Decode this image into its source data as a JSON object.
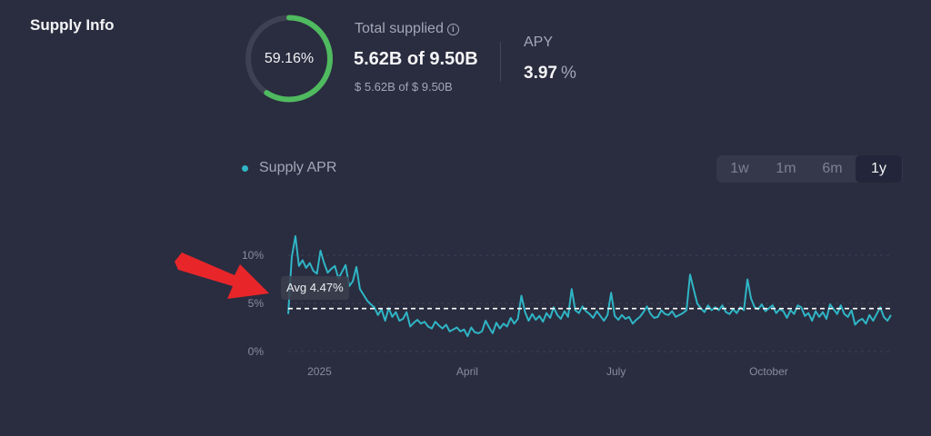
{
  "section": {
    "title": "Supply Info"
  },
  "utilization": {
    "percent_text": "59.16%",
    "fraction": 0.5916
  },
  "total_supplied": {
    "label": "Total supplied",
    "value": "5.62B of 9.50B",
    "usd": "$ 5.62B of $ 9.50B"
  },
  "apy": {
    "label": "APY",
    "value": "3.97",
    "unit": "%"
  },
  "legend": {
    "label": "Supply APR"
  },
  "ranges": [
    {
      "label": "1w",
      "active": false
    },
    {
      "label": "1m",
      "active": false
    },
    {
      "label": "6m",
      "active": false
    },
    {
      "label": "1y",
      "active": true
    }
  ],
  "colors": {
    "background": "#2a2d3f",
    "ring_fill": "#4fba5f",
    "ring_track": "#3e4152",
    "series": "#2fb5c6",
    "arrow": "#e8262a"
  },
  "chart_data": {
    "type": "line",
    "series_name": "Supply APR",
    "ylim": [
      0,
      12
    ],
    "yticks": [
      "10%",
      "5%",
      "0%"
    ],
    "ytick_values": [
      10,
      5,
      0
    ],
    "xticks": [
      "2025",
      "April",
      "July",
      "October"
    ],
    "xtick_positions": [
      0.052,
      0.297,
      0.544,
      0.797
    ],
    "avg_value": 4.47,
    "avg_label": "Avg 4.47%",
    "values": [
      3.9,
      9.8,
      12.0,
      8.9,
      9.5,
      8.7,
      9.2,
      8.4,
      8.1,
      10.5,
      9.2,
      8.2,
      8.6,
      8.9,
      7.6,
      8.3,
      9.0,
      6.8,
      7.3,
      8.8,
      6.5,
      5.9,
      5.3,
      4.9,
      4.6,
      3.8,
      4.4,
      3.2,
      4.5,
      3.6,
      4.1,
      3.2,
      3.4,
      4.1,
      2.6,
      3.0,
      3.3,
      2.9,
      3.1,
      2.6,
      2.4,
      3.1,
      2.7,
      2.4,
      2.8,
      2.1,
      2.3,
      2.5,
      2.1,
      2.3,
      1.6,
      2.5,
      2.0,
      1.9,
      2.1,
      3.2,
      2.5,
      1.9,
      3.0,
      2.4,
      2.9,
      2.6,
      3.5,
      2.9,
      3.4,
      5.8,
      4.1,
      3.2,
      3.9,
      3.3,
      3.7,
      3.1,
      4.0,
      3.5,
      4.6,
      3.8,
      3.4,
      4.2,
      3.6,
      6.5,
      4.3,
      4.0,
      4.7,
      4.2,
      3.9,
      3.5,
      4.2,
      3.7,
      3.2,
      3.8,
      6.1,
      3.7,
      3.3,
      3.8,
      3.4,
      3.6,
      2.9,
      3.3,
      3.6,
      4.1,
      4.7,
      3.9,
      3.5,
      3.6,
      4.3,
      3.9,
      3.8,
      4.2,
      3.6,
      3.8,
      4.0,
      4.3,
      8.0,
      6.5,
      5.0,
      4.5,
      4.1,
      4.8,
      4.3,
      4.6,
      4.3,
      4.8,
      4.1,
      3.9,
      4.4,
      4.0,
      4.6,
      4.3,
      7.5,
      5.5,
      4.6,
      4.4,
      4.9,
      4.2,
      4.5,
      4.8,
      4.0,
      4.4,
      4.2,
      3.5,
      4.3,
      3.9,
      4.8,
      4.6,
      3.7,
      4.0,
      3.2,
      4.2,
      3.6,
      4.1,
      3.4,
      4.9,
      4.4,
      3.9,
      4.8,
      3.9,
      3.6,
      4.3,
      2.8,
      3.2,
      3.4,
      2.9,
      3.8,
      3.2,
      3.9,
      4.6,
      3.6,
      3.2,
      3.8
    ]
  }
}
